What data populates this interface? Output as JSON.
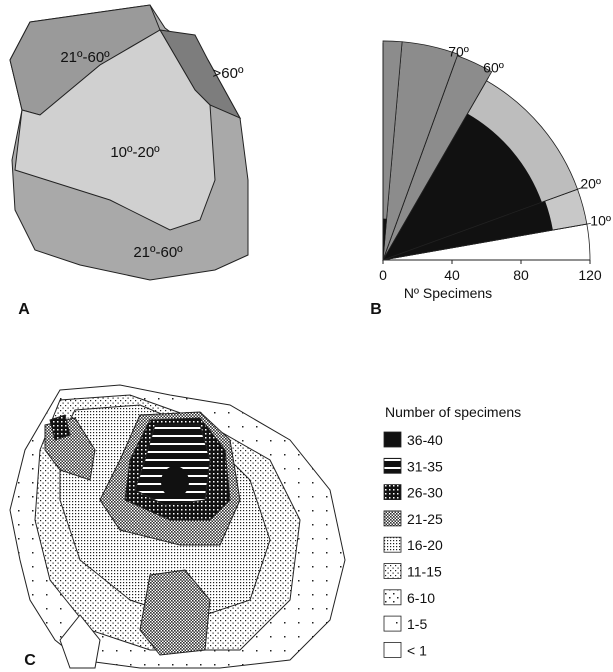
{
  "panel_a": {
    "letter": "A",
    "regions": [
      ">60º",
      "21º-60º",
      "10º-20º",
      "21º-60º"
    ]
  },
  "chart_data": {
    "type": "rose",
    "letter": "B",
    "x_label": "Nº Specimens",
    "rlim": [
      0,
      120
    ],
    "rticks": [
      0,
      40,
      80,
      120
    ],
    "angle_bins": [
      0,
      10,
      20,
      60,
      70,
      85,
      90
    ],
    "angle_ticks": [
      {
        "value": 10,
        "label": "10º"
      },
      {
        "value": 20,
        "label": "20º"
      },
      {
        "value": 60,
        "label": "60º"
      },
      {
        "value": 70,
        "label": "70º"
      }
    ],
    "series": [
      {
        "colors": [
          "#ffffff",
          "#c8c8c8",
          "#bdbdbd",
          "#8c8c8c",
          "#8c8c8c",
          "#8c8c8c"
        ],
        "values": [
          120,
          120,
          120,
          126,
          127,
          127
        ]
      },
      {
        "color": "#111111",
        "values": [
          0,
          100,
          98,
          0,
          0,
          24
        ]
      }
    ]
  },
  "panel_c": {
    "letter": "C",
    "legend_title": "Number of specimens",
    "legend": [
      "36-40",
      "31-35",
      "26-30",
      "21-25",
      "16-20",
      "11-15",
      "6-10",
      "1-5",
      "< 1"
    ]
  }
}
